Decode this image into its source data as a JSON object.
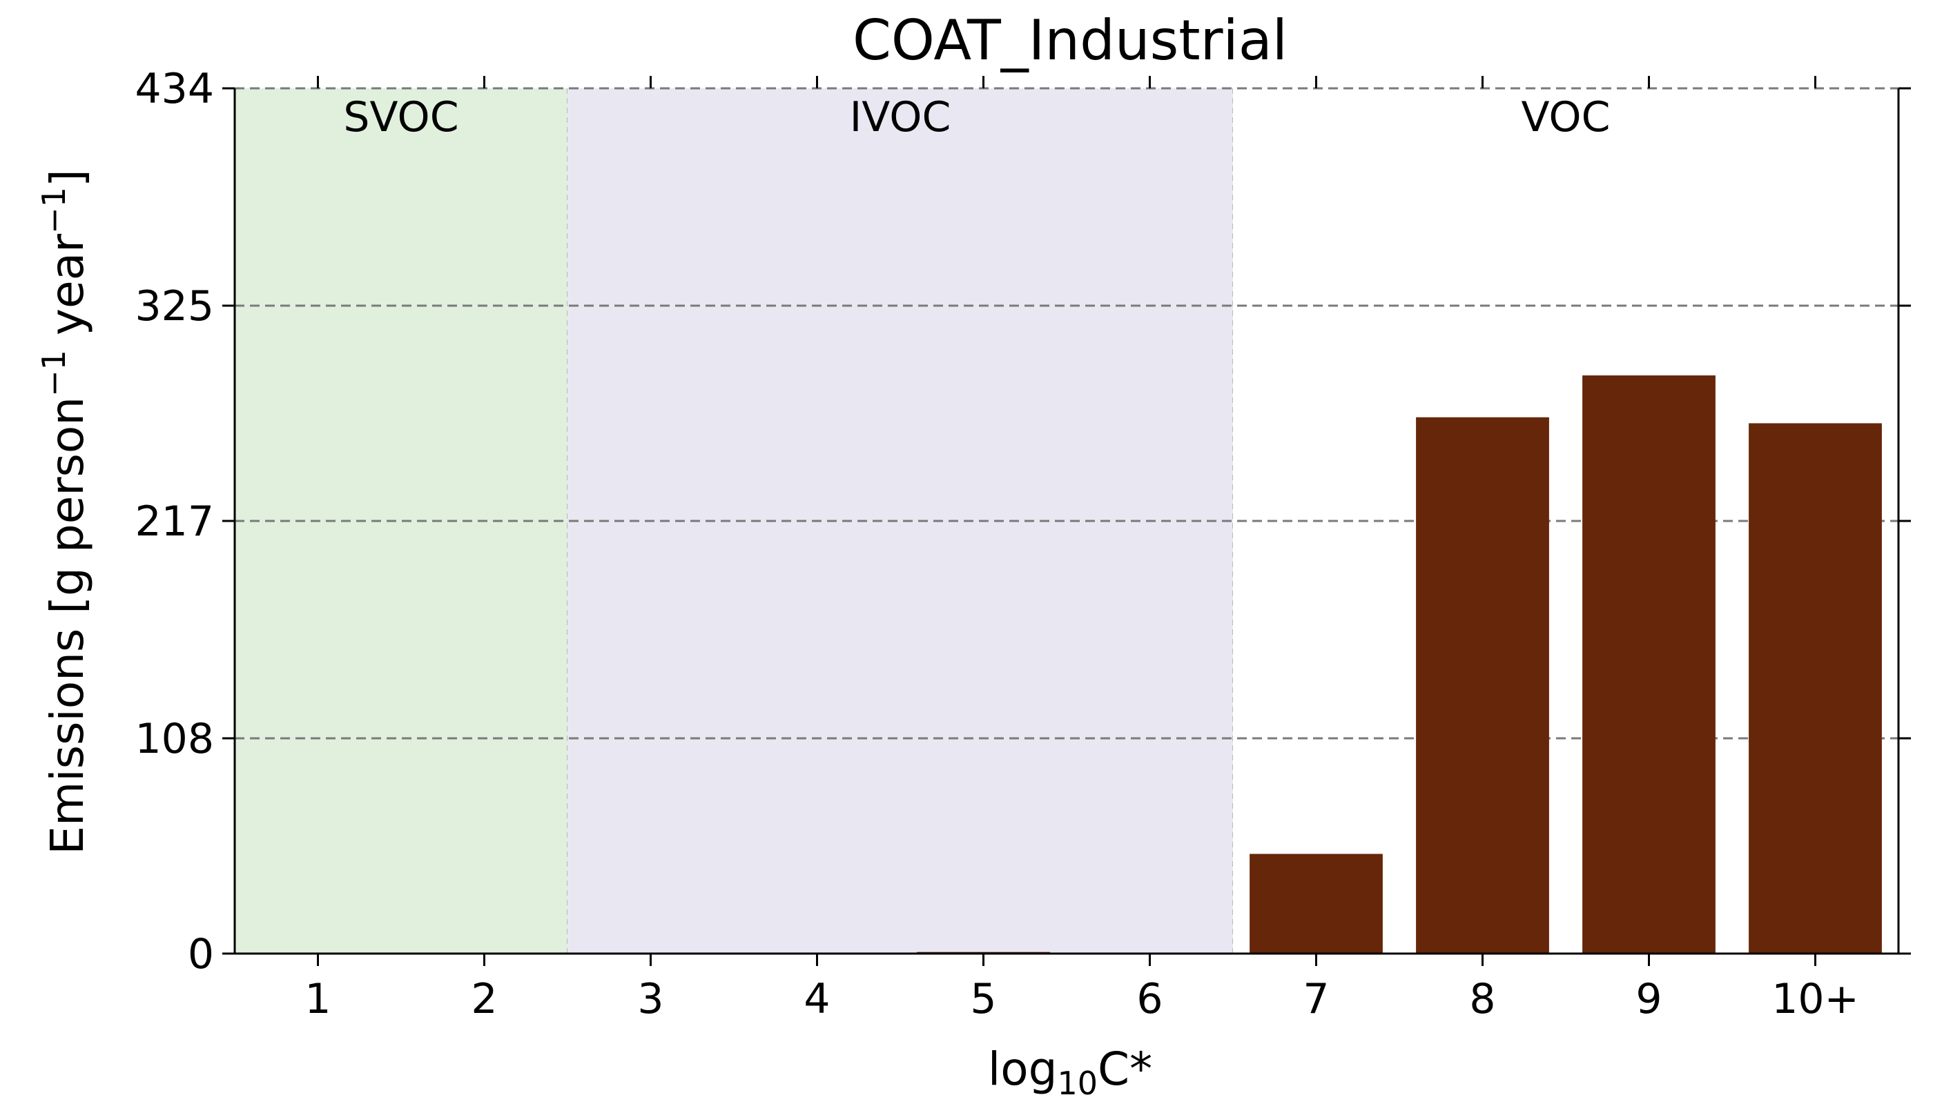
{
  "chart_data": {
    "type": "bar",
    "title": "COAT_Industrial",
    "xlabel": "log",
    "xlabel_sub": "10",
    "xlabel_suffix": "C*",
    "ylabel": "Emissions [g person",
    "ylabel_sup1": "−1",
    "ylabel_mid": " year",
    "ylabel_sup2": "−1",
    "ylabel_end": "]",
    "categories": [
      "1",
      "2",
      "3",
      "4",
      "5",
      "6",
      "7",
      "8",
      "9",
      "10+"
    ],
    "values": [
      0,
      0,
      0,
      0,
      0.8,
      0,
      50,
      269,
      290,
      266
    ],
    "ylim": [
      0,
      434
    ],
    "yticks": [
      0,
      108,
      217,
      325,
      434
    ],
    "grid": "horizontal dashed",
    "bar_color": "#66260a",
    "regions": [
      {
        "label": "SVOC",
        "from": 0.5,
        "to": 2.5,
        "color": "#e0f0dd"
      },
      {
        "label": "IVOC",
        "from": 2.5,
        "to": 6.5,
        "color": "#e9e8f2"
      },
      {
        "label": "VOC",
        "from": 6.5,
        "to": 10.5,
        "color": "#ffffff"
      }
    ]
  }
}
